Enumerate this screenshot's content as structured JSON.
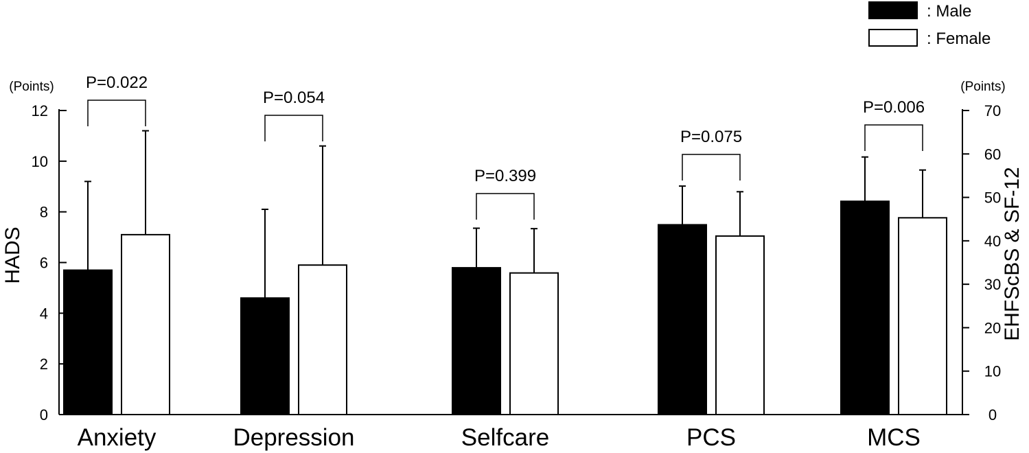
{
  "chart_data": {
    "type": "bar",
    "categories": [
      "Anxiety",
      "Depression",
      "Selfcare",
      "PCS",
      "MCS"
    ],
    "series": [
      {
        "name": "Male",
        "color": "#000000",
        "values": [
          5.7,
          4.6,
          33.8,
          43.7,
          49.1
        ],
        "errors": [
          3.5,
          3.5,
          9.1,
          8.9,
          10.2
        ]
      },
      {
        "name": "Female",
        "color": "#ffffff",
        "values": [
          7.1,
          5.9,
          32.6,
          41.1,
          45.3
        ],
        "errors": [
          4.1,
          4.7,
          10.2,
          10.2,
          11.0
        ]
      }
    ],
    "axis_for_category": [
      "left",
      "left",
      "right",
      "right",
      "right"
    ],
    "p_values": [
      "P=0.022",
      "P=0.054",
      "P=0.399",
      "P=0.075",
      "P=0.006"
    ],
    "left_axis": {
      "title": "HADS",
      "unit": "(Points)",
      "range": [
        0,
        12
      ],
      "ticks": [
        0,
        2,
        4,
        6,
        8,
        10,
        12
      ]
    },
    "right_axis": {
      "title": "EHFScBS & SF-12",
      "unit": "(Points)",
      "range": [
        0,
        70
      ],
      "ticks": [
        0,
        10,
        20,
        30,
        40,
        50,
        60,
        70
      ]
    },
    "legend": {
      "placement": "top-right",
      "items": [
        {
          "label": ": Male",
          "color": "#000000"
        },
        {
          "label": ": Female",
          "color": "#ffffff"
        }
      ]
    },
    "grid": false
  }
}
